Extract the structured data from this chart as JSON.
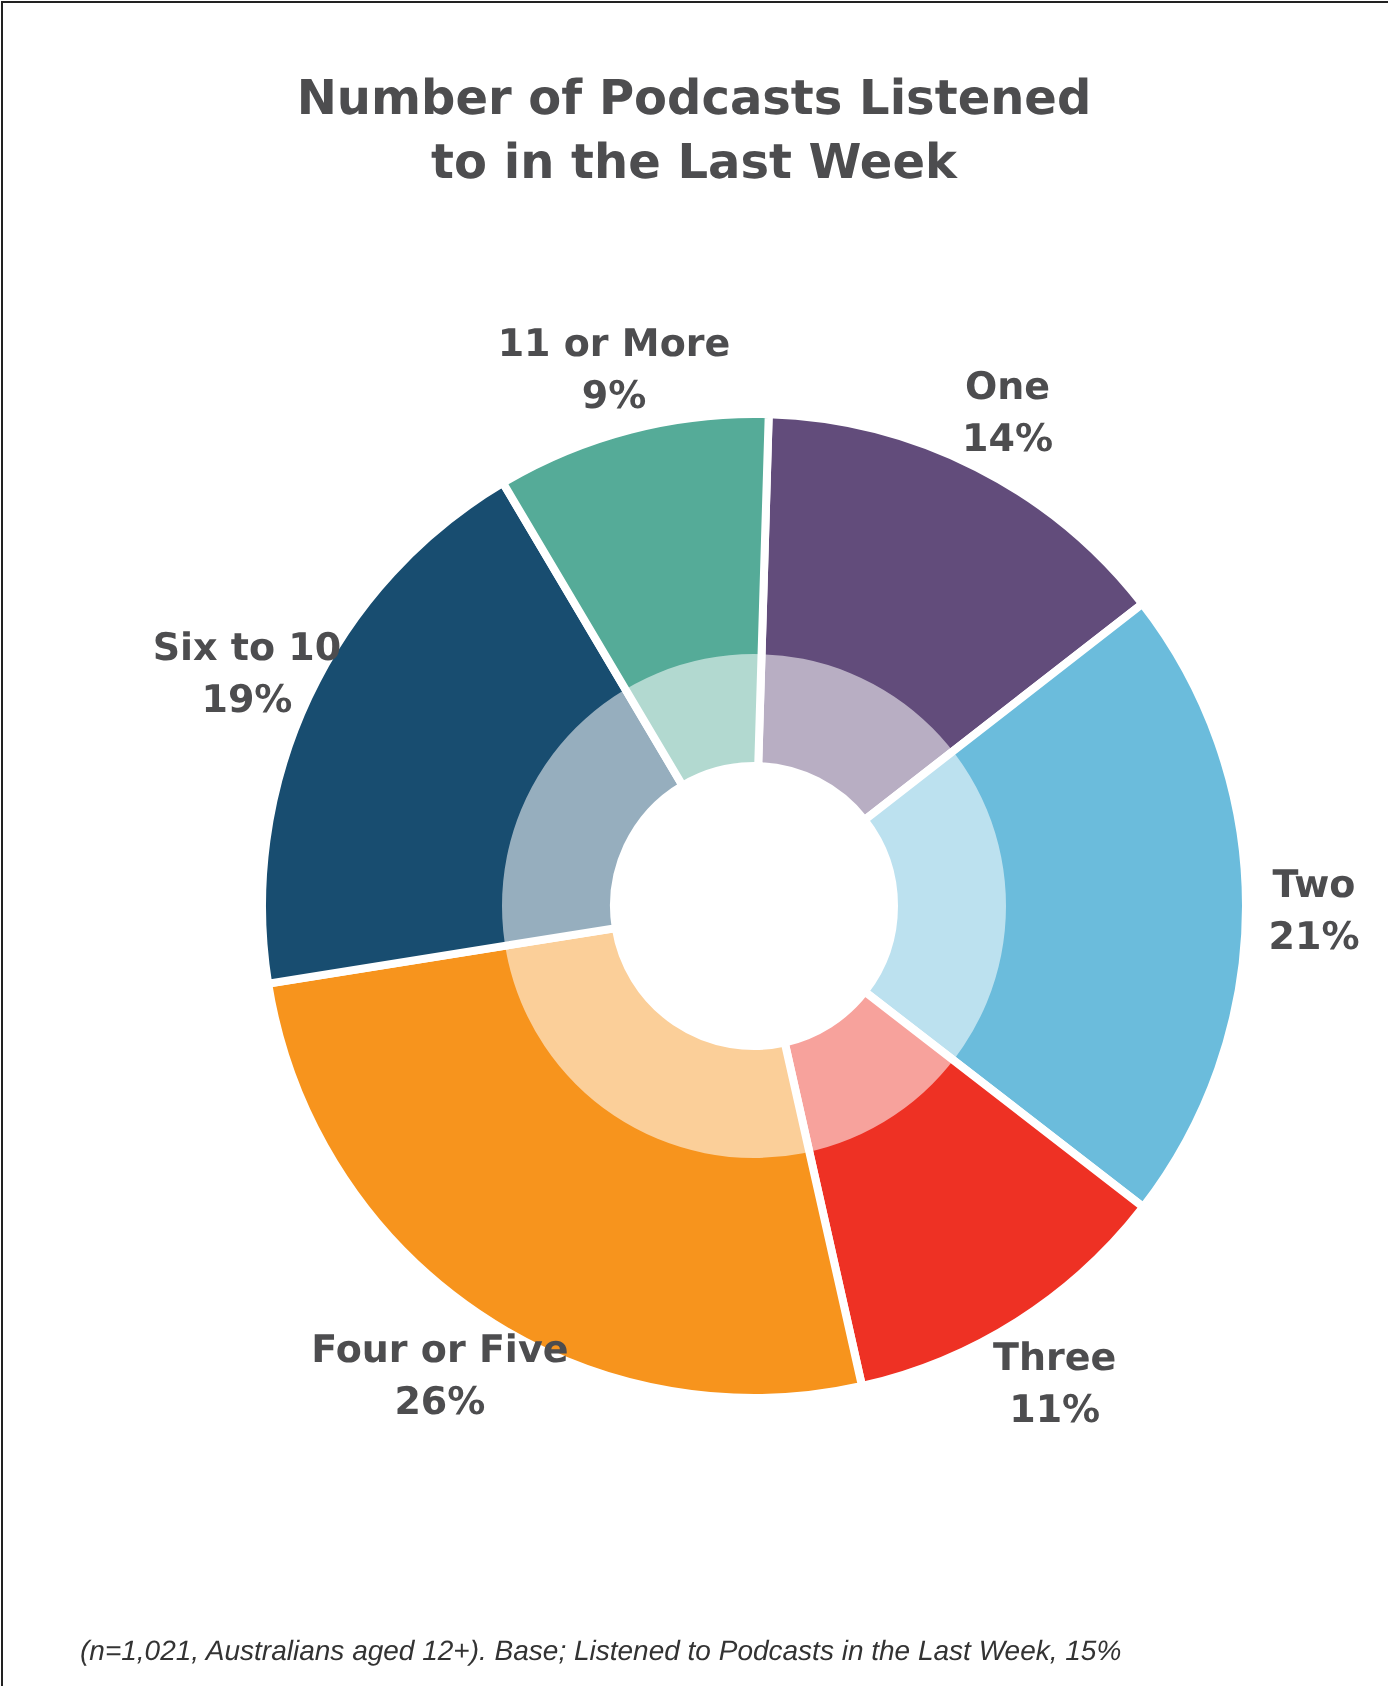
{
  "chart_data": {
    "type": "donut",
    "title": "Number of Podcasts Listened to in the Last Week",
    "categories": [
      "One",
      "Two",
      "Three",
      "Four or Five",
      "Six to 10",
      "11 or More"
    ],
    "values": [
      14,
      21,
      11,
      26,
      19,
      9
    ],
    "value_labels": [
      "14%",
      "21%",
      "11%",
      "26%",
      "19%",
      "9%"
    ],
    "colors": [
      "#624c7b",
      "#6bbcdc",
      "#ee3124",
      "#f7941d",
      "#184d70",
      "#55ab98"
    ],
    "annotations": [
      "(n=1,021,  Australians aged 12+). Base; Listened to Podcasts in the Last Week, 15%"
    ]
  }
}
